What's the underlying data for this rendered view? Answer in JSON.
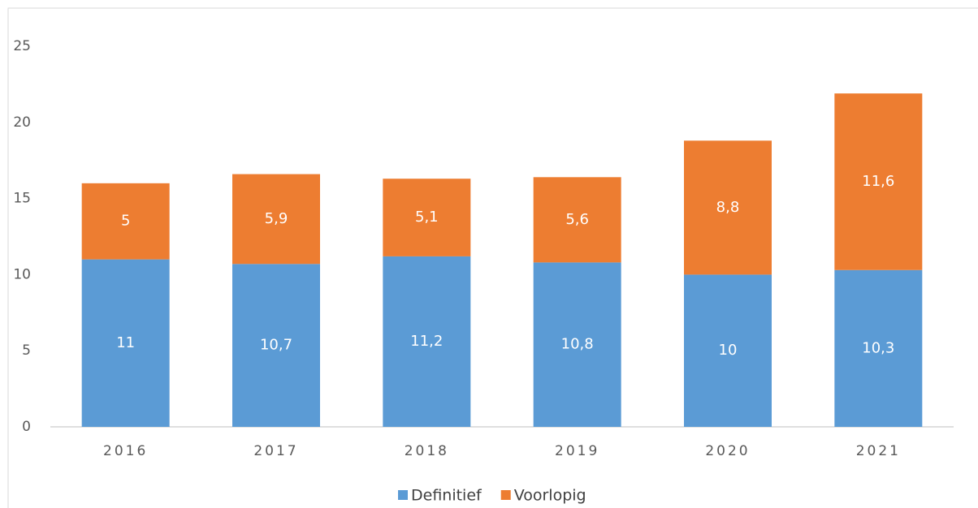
{
  "chart_data": {
    "type": "stacked_bar",
    "categories": [
      "2016",
      "2017",
      "2018",
      "2019",
      "2020",
      "2021"
    ],
    "series": [
      {
        "name": "Definitief",
        "color": "#5b9bd5",
        "values": [
          11,
          10.7,
          11.2,
          10.8,
          10,
          10.3
        ],
        "value_labels": [
          "11",
          "10,7",
          "11,2",
          "10,8",
          "10",
          "10,3"
        ]
      },
      {
        "name": "Voorlopig",
        "color": "#ed7d31",
        "values": [
          5,
          5.9,
          5.1,
          5.6,
          8.8,
          11.6
        ],
        "value_labels": [
          "5",
          "5,9",
          "5,1",
          "5,6",
          "8,8",
          "11,6"
        ]
      }
    ],
    "ylim": [
      0,
      25
    ],
    "yticks": [
      0,
      5,
      10,
      15,
      20,
      25
    ],
    "grid": false,
    "legend": "bottom"
  }
}
